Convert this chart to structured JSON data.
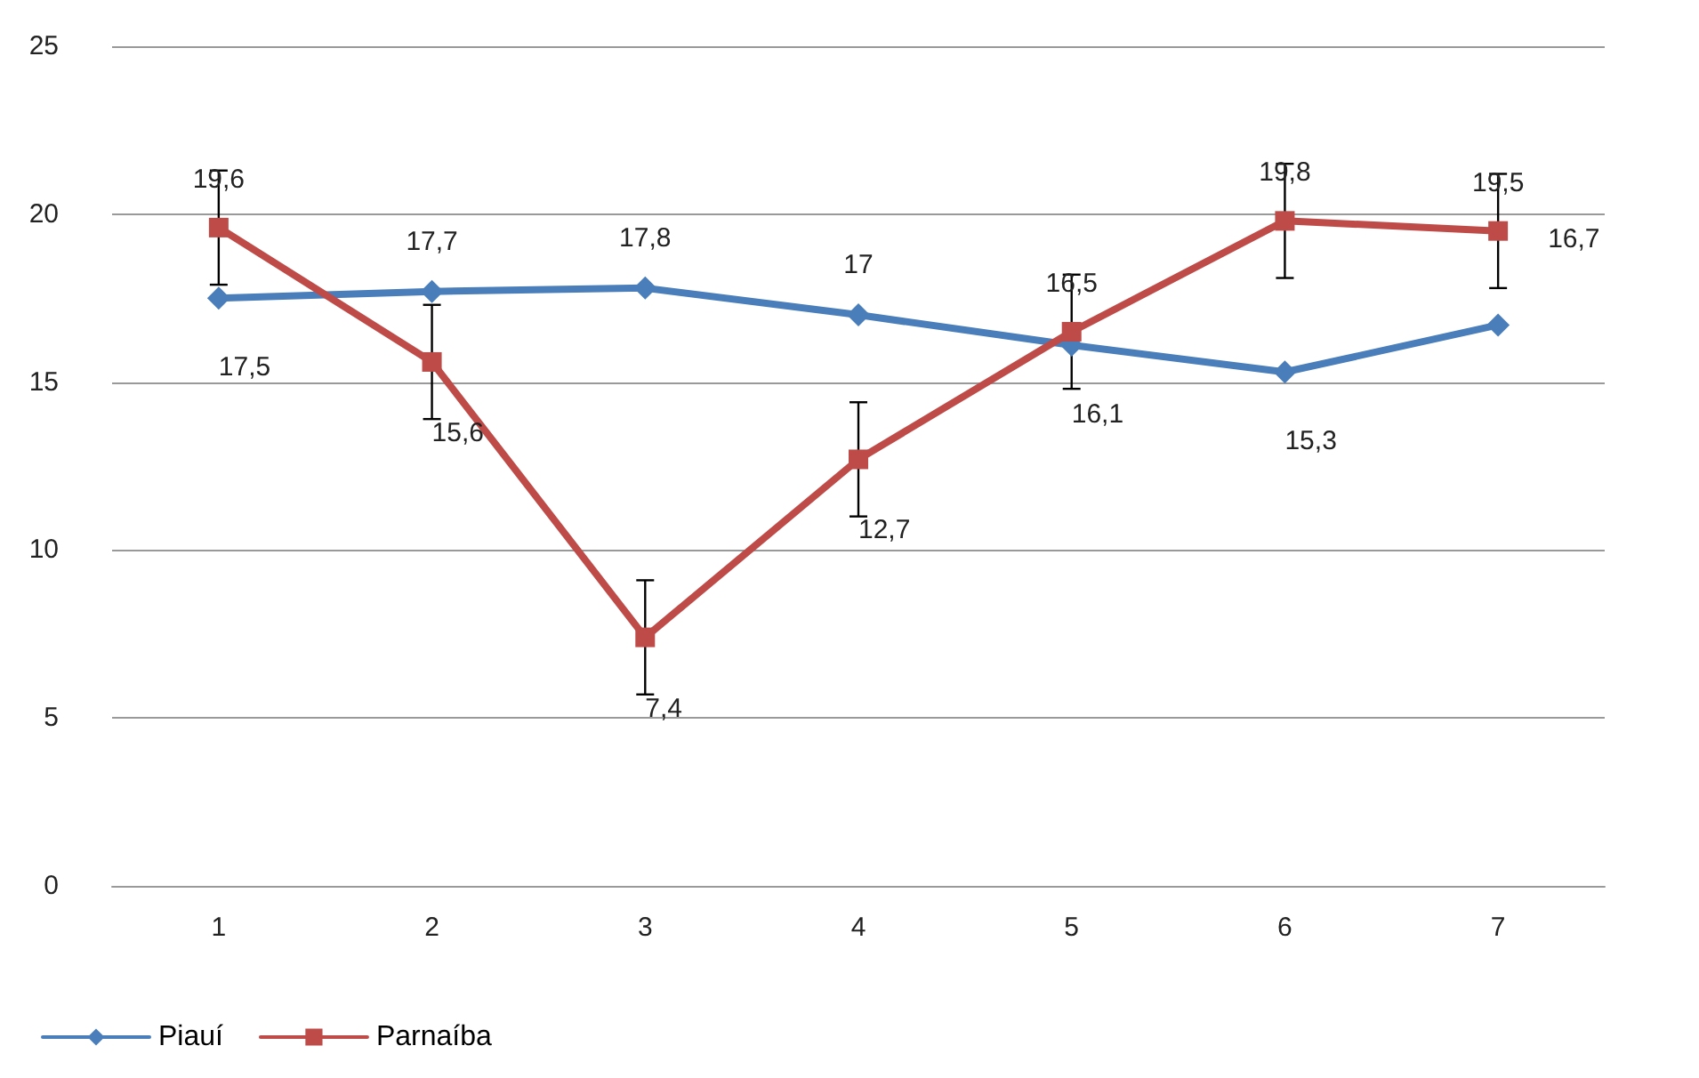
{
  "chart_data": {
    "type": "line",
    "categories": [
      "1",
      "2",
      "3",
      "4",
      "5",
      "6",
      "7"
    ],
    "series": [
      {
        "name": "Piauí",
        "color": "#4a7ebb",
        "marker": "diamond",
        "values": [
          17.5,
          17.7,
          17.8,
          17,
          16.1,
          15.3,
          16.7
        ],
        "value_labels": [
          "17,5",
          "17,7",
          "17,8",
          "17",
          "16,1",
          "15,3",
          "16,7"
        ]
      },
      {
        "name": "Parnaíba",
        "color": "#be4b48",
        "marker": "square",
        "values": [
          19.6,
          15.6,
          7.4,
          12.7,
          16.5,
          19.8,
          19.5
        ],
        "value_labels": [
          "19,6",
          "15,6",
          "7,4",
          "12,7",
          "16,5",
          "19,8",
          "19,5"
        ],
        "errors": [
          1.7,
          1.7,
          1.7,
          1.7,
          1.7,
          1.7,
          1.7
        ]
      }
    ],
    "ylim": [
      0,
      25
    ],
    "yticks": [
      0,
      5,
      10,
      15,
      20,
      25
    ],
    "grid": "y",
    "legend": "bottom left"
  }
}
